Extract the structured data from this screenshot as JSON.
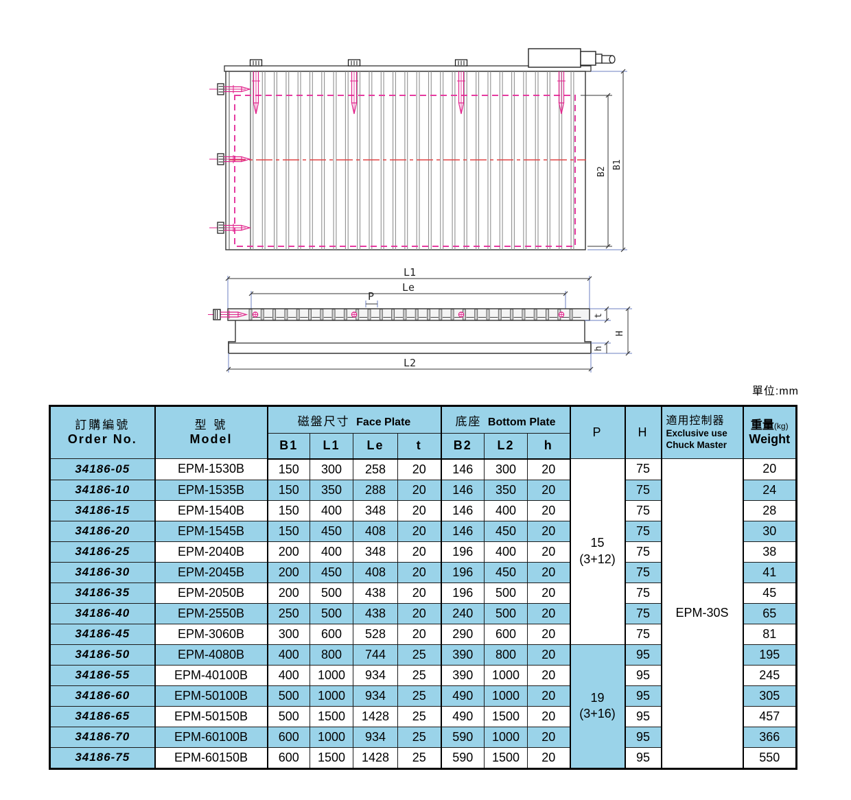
{
  "page": {
    "unit_label": "單位:mm"
  },
  "diagram": {
    "top_view": {
      "label_b1": "B1",
      "label_b2": "B2"
    },
    "side_view": {
      "label_l1": "L1",
      "label_le": "Le",
      "label_p": "P",
      "label_l2": "L2",
      "label_t": "t",
      "label_h_total": "H",
      "label_h_base": "h"
    },
    "colors": {
      "outline": "#333333",
      "pole": "#8f8f8f",
      "dimension": "#6b7fc0",
      "magenta": "#e0218a",
      "centerline": "#e04545"
    }
  },
  "table": {
    "header": {
      "order_no_zh": "訂購編號",
      "order_no_en": "Order No.",
      "model_zh": "型 號",
      "model_en": "Model",
      "face_plate_zh": "磁盤尺寸",
      "face_plate_en": "Face Plate",
      "face_cols": [
        "B1",
        "L1",
        "Le",
        "t"
      ],
      "bottom_plate_zh": "底座",
      "bottom_plate_en": "Bottom Plate",
      "bottom_cols": [
        "B2",
        "L2",
        "h"
      ],
      "p": "P",
      "h": "H",
      "controller_zh": "適用控制器",
      "controller_en1": "Exclusive use",
      "controller_en2": "Chuck Master",
      "weight_zh": "重量",
      "weight_unit": "(kg)",
      "weight_en": "Weight"
    },
    "p_groups": [
      {
        "line1": "15",
        "line2": "(3+12)",
        "span": 9,
        "shaded": false
      },
      {
        "line1": "19",
        "line2": "(3+16)",
        "span": 6,
        "shaded": true
      }
    ],
    "controller_value": "EPM-30S",
    "rows": [
      {
        "order": "34186-05",
        "model": "EPM-1530B",
        "B1": "150",
        "L1": "300",
        "Le": "258",
        "t": "20",
        "B2": "146",
        "L2": "300",
        "h": "20",
        "H": "75",
        "weight": "20"
      },
      {
        "order": "34186-10",
        "model": "EPM-1535B",
        "B1": "150",
        "L1": "350",
        "Le": "288",
        "t": "20",
        "B2": "146",
        "L2": "350",
        "h": "20",
        "H": "75",
        "weight": "24"
      },
      {
        "order": "34186-15",
        "model": "EPM-1540B",
        "B1": "150",
        "L1": "400",
        "Le": "348",
        "t": "20",
        "B2": "146",
        "L2": "400",
        "h": "20",
        "H": "75",
        "weight": "28"
      },
      {
        "order": "34186-20",
        "model": "EPM-1545B",
        "B1": "150",
        "L1": "450",
        "Le": "408",
        "t": "20",
        "B2": "146",
        "L2": "450",
        "h": "20",
        "H": "75",
        "weight": "30"
      },
      {
        "order": "34186-25",
        "model": "EPM-2040B",
        "B1": "200",
        "L1": "400",
        "Le": "348",
        "t": "20",
        "B2": "196",
        "L2": "400",
        "h": "20",
        "H": "75",
        "weight": "38"
      },
      {
        "order": "34186-30",
        "model": "EPM-2045B",
        "B1": "200",
        "L1": "450",
        "Le": "408",
        "t": "20",
        "B2": "196",
        "L2": "450",
        "h": "20",
        "H": "75",
        "weight": "41"
      },
      {
        "order": "34186-35",
        "model": "EPM-2050B",
        "B1": "200",
        "L1": "500",
        "Le": "438",
        "t": "20",
        "B2": "196",
        "L2": "500",
        "h": "20",
        "H": "75",
        "weight": "45"
      },
      {
        "order": "34186-40",
        "model": "EPM-2550B",
        "B1": "250",
        "L1": "500",
        "Le": "438",
        "t": "20",
        "B2": "240",
        "L2": "500",
        "h": "20",
        "H": "75",
        "weight": "65"
      },
      {
        "order": "34186-45",
        "model": "EPM-3060B",
        "B1": "300",
        "L1": "600",
        "Le": "528",
        "t": "20",
        "B2": "290",
        "L2": "600",
        "h": "20",
        "H": "75",
        "weight": "81"
      },
      {
        "order": "34186-50",
        "model": "EPM-4080B",
        "B1": "400",
        "L1": "800",
        "Le": "744",
        "t": "25",
        "B2": "390",
        "L2": "800",
        "h": "20",
        "H": "95",
        "weight": "195"
      },
      {
        "order": "34186-55",
        "model": "EPM-40100B",
        "B1": "400",
        "L1": "1000",
        "Le": "934",
        "t": "25",
        "B2": "390",
        "L2": "1000",
        "h": "20",
        "H": "95",
        "weight": "245"
      },
      {
        "order": "34186-60",
        "model": "EPM-50100B",
        "B1": "500",
        "L1": "1000",
        "Le": "934",
        "t": "25",
        "B2": "490",
        "L2": "1000",
        "h": "20",
        "H": "95",
        "weight": "305"
      },
      {
        "order": "34186-65",
        "model": "EPM-50150B",
        "B1": "500",
        "L1": "1500",
        "Le": "1428",
        "t": "25",
        "B2": "490",
        "L2": "1500",
        "h": "20",
        "H": "95",
        "weight": "457"
      },
      {
        "order": "34186-70",
        "model": "EPM-60100B",
        "B1": "600",
        "L1": "1000",
        "Le": "934",
        "t": "25",
        "B2": "590",
        "L2": "1000",
        "h": "20",
        "H": "95",
        "weight": "366"
      },
      {
        "order": "34186-75",
        "model": "EPM-60150B",
        "B1": "600",
        "L1": "1500",
        "Le": "1428",
        "t": "25",
        "B2": "590",
        "L2": "1500",
        "h": "20",
        "H": "95",
        "weight": "550"
      }
    ]
  }
}
